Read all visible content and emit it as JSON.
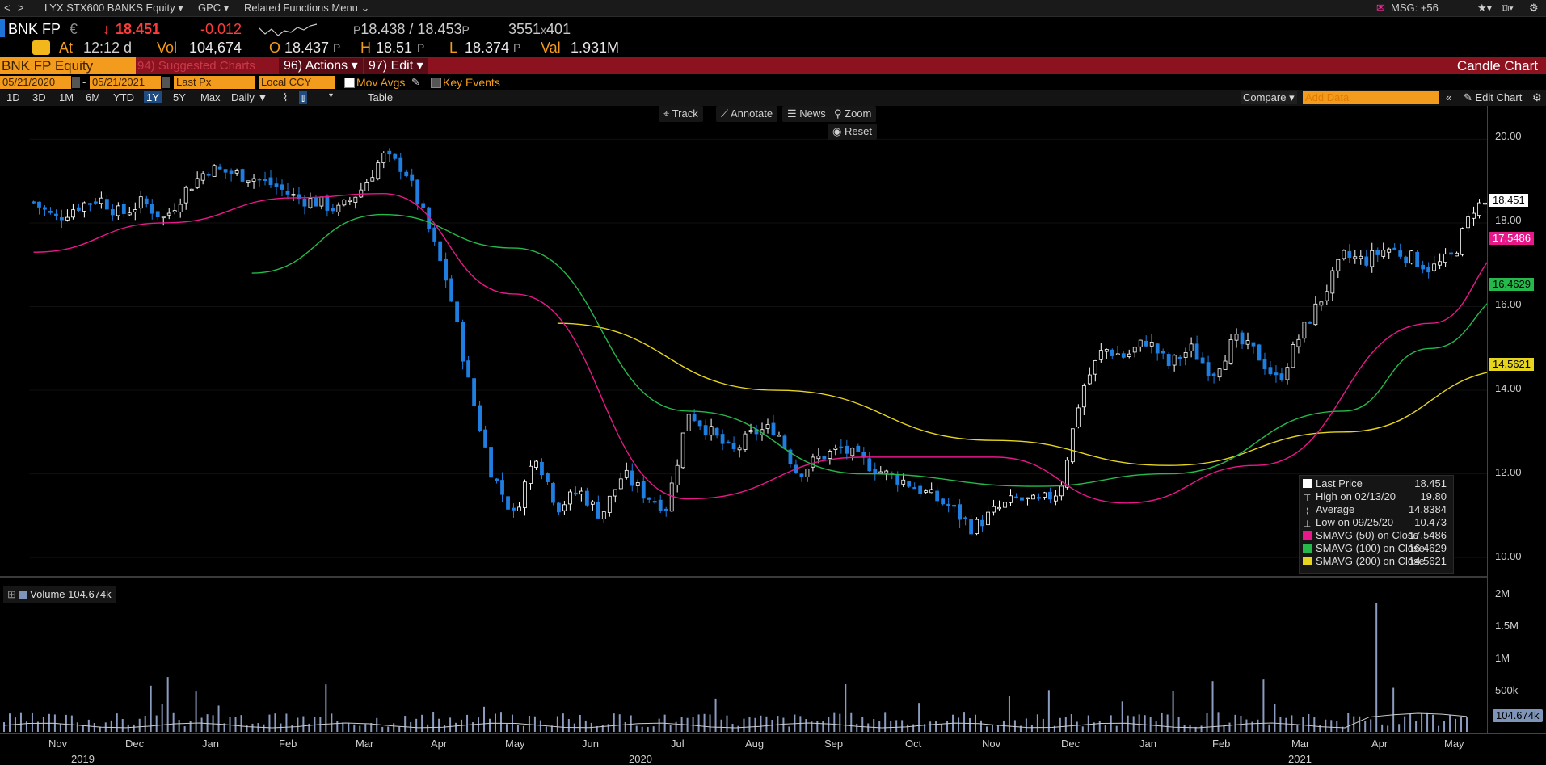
{
  "topnav": {
    "back": "<",
    "forward": ">",
    "security": "LYX STX600 BANKS Equity",
    "gpc": "GPC",
    "related": "Related Functions Menu",
    "msg": "MSG: +56"
  },
  "quote": {
    "ticker": "BNK FP",
    "currency": "€",
    "last": "18.451",
    "change": "-0.012",
    "bid": "18.438",
    "ask": "18.453",
    "size": "3551",
    "size2": "401",
    "time_label": "At",
    "time": "12:12 d",
    "vol_label": "Vol",
    "vol": "104,674",
    "open_label": "O",
    "open": "18.437",
    "high_label": "H",
    "high": "18.51",
    "low_label": "L",
    "low": "18.374",
    "val_label": "Val",
    "val": "1.931M",
    "price_suffix": "P"
  },
  "redbar": {
    "equity": "BNK FP Equity",
    "suggested": "94) Suggested Charts",
    "actions": "96) Actions",
    "edit": "97) Edit",
    "title": "Candle Chart"
  },
  "settings": {
    "start_date": "05/21/2020",
    "end_date": "05/21/2021",
    "field": "Last Px",
    "ccy": "Local CCY",
    "mov_avgs": "Mov Avgs",
    "key_events": "Key Events"
  },
  "periodbar": {
    "periods": [
      "1D",
      "3D",
      "1M",
      "6M",
      "YTD",
      "1Y",
      "5Y",
      "Max"
    ],
    "selected": "1Y",
    "frequency": "Daily",
    "table": "Table",
    "compare": "Compare",
    "add_data_placeholder": "Add Data",
    "edit_chart": "Edit Chart"
  },
  "toolbar": {
    "track": "Track",
    "annotate": "Annotate",
    "news": "News",
    "zoom": "Zoom",
    "reset": "Reset"
  },
  "price_labels": {
    "last": "18.451",
    "sma50": "17.5486",
    "sma100": "16.4629",
    "sma200": "14.5621"
  },
  "legend": [
    {
      "label": "Last Price",
      "value": "18.451",
      "color": "#ffffff",
      "marker": "box"
    },
    {
      "label": "High on 02/13/20",
      "value": "19.80",
      "color": "#cccccc",
      "marker": "high"
    },
    {
      "label": "Average",
      "value": "14.8384",
      "color": "#cccccc",
      "marker": "avg"
    },
    {
      "label": "Low on 09/25/20",
      "value": "10.473",
      "color": "#cccccc",
      "marker": "low"
    },
    {
      "label": "SMAVG (50)  on Close",
      "value": "17.5486",
      "color": "#e8178a",
      "marker": "box"
    },
    {
      "label": "SMAVG (100) on Close",
      "value": "16.4629",
      "color": "#25b84a",
      "marker": "box"
    },
    {
      "label": "SMAVG (200) on Close",
      "value": "14.5621",
      "color": "#e6d51f",
      "marker": "box"
    }
  ],
  "volume": {
    "label": "Volume",
    "value": "104.674k",
    "axis": [
      "2M",
      "1.5M",
      "1M",
      "500k"
    ],
    "current": "104.674k"
  },
  "chart_data": {
    "type": "candlestick",
    "y_ticks": [
      "20.00",
      "18.00",
      "16.00",
      "14.00",
      "12.00",
      "10.00"
    ],
    "ylim": [
      9.5,
      20.8
    ],
    "x_months": [
      "Nov",
      "Dec",
      "Jan",
      "Feb",
      "Mar",
      "Apr",
      "May",
      "Jun",
      "Jul",
      "Aug",
      "Sep",
      "Oct",
      "Nov",
      "Dec",
      "Jan",
      "Feb",
      "Mar",
      "Apr",
      "May"
    ],
    "x_years": [
      "2019",
      "2020",
      "2021"
    ],
    "close_path": [
      18.5,
      18.1,
      18.4,
      18.6,
      18.2,
      18.5,
      18.1,
      18.8,
      19.3,
      19.2,
      19.1,
      18.9,
      18.6,
      18.5,
      18.3,
      18.8,
      19.6,
      19.3,
      18.0,
      16.5,
      14.0,
      12.0,
      11.0,
      12.5,
      11.2,
      11.6,
      11.0,
      12.0,
      11.5,
      11.2,
      13.5,
      13.0,
      12.5,
      13.0,
      13.1,
      12.0,
      12.4,
      12.6,
      12.3,
      12.0,
      11.8,
      11.5,
      11.2,
      10.7,
      11.1,
      11.4,
      11.3,
      11.6,
      14.0,
      15.0,
      14.8,
      15.2,
      14.6,
      15.0,
      14.4,
      15.2,
      14.9,
      14.2,
      15.3,
      16.2,
      17.2,
      17.1,
      17.4,
      17.2,
      16.9,
      17.2,
      18.4,
      18.5
    ],
    "sma50": [
      [
        0,
        17.3
      ],
      [
        6,
        18.0
      ],
      [
        12,
        18.6
      ],
      [
        16,
        18.7
      ],
      [
        22,
        16.3
      ],
      [
        30,
        11.4
      ],
      [
        38,
        12.4
      ],
      [
        44,
        12.4
      ],
      [
        50,
        11.3
      ],
      [
        56,
        12.2
      ],
      [
        64,
        15.6
      ],
      [
        68,
        17.5
      ]
    ],
    "sma100": [
      [
        10,
        16.8
      ],
      [
        16,
        18.2
      ],
      [
        22,
        17.4
      ],
      [
        30,
        13.5
      ],
      [
        38,
        12.0
      ],
      [
        46,
        11.7
      ],
      [
        52,
        12.0
      ],
      [
        60,
        13.5
      ],
      [
        64,
        15.0
      ],
      [
        68,
        16.4
      ]
    ],
    "sma200": [
      [
        24,
        15.6
      ],
      [
        34,
        14.0
      ],
      [
        44,
        12.8
      ],
      [
        52,
        12.2
      ],
      [
        60,
        13.0
      ],
      [
        68,
        14.5
      ]
    ]
  }
}
